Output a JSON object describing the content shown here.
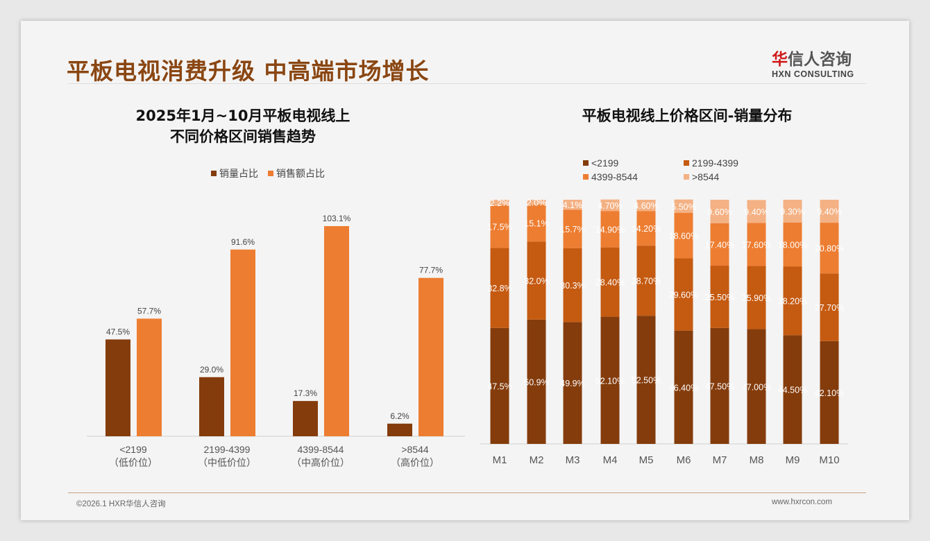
{
  "header": {
    "title": "平板电视消费升级 中高端市场增长",
    "logo_cn_first": "华",
    "logo_cn_rest": "信人咨询",
    "logo_en": "HXN CONSULTING"
  },
  "footer": {
    "copyright": "©2026.1 HXR华信人咨询",
    "url": "www.hxrcon.com"
  },
  "colors": {
    "c1": "#843c0c",
    "c2": "#c55a11",
    "c3": "#ed7d31",
    "c4": "#f4b183"
  },
  "chart_data": [
    {
      "type": "bar",
      "title_line1": "2025年1月~10月平板电视线上",
      "title_line2": "不同价格区间销售趋势",
      "categories": [
        "<2199",
        "2199-4399",
        "4399-8544",
        ">8544"
      ],
      "subcategories": [
        "（低价位）",
        "（中低价位）",
        "（中高价位）",
        "（高价位）"
      ],
      "series": [
        {
          "name": "销量占比",
          "values": [
            47.5,
            29.0,
            17.3,
            6.2
          ],
          "labels": [
            "47.5%",
            "29.0%",
            "17.3%",
            "6.2%"
          ]
        },
        {
          "name": "销售额占比",
          "values": [
            57.7,
            91.6,
            103.1,
            77.7
          ],
          "labels": [
            "57.7%",
            "91.6%",
            "103.1%",
            "77.7%"
          ]
        }
      ],
      "ylim": [
        0,
        110
      ],
      "legend": "top-center"
    },
    {
      "type": "bar",
      "stacked": true,
      "title": "平板电视线上价格区间-销量分布",
      "categories": [
        "M1",
        "M2",
        "M3",
        "M4",
        "M5",
        "M6",
        "M7",
        "M8",
        "M9",
        "M10"
      ],
      "series": [
        {
          "name": "<2199",
          "values": [
            47.5,
            50.9,
            49.9,
            52.1,
            52.5,
            46.4,
            47.5,
            47.0,
            44.5,
            42.1
          ],
          "labels": [
            "47.5%",
            "50.9%",
            "49.9%",
            "52.10%",
            "52.50%",
            "46.40%",
            "47.50%",
            "47.00%",
            "44.50%",
            "42.10%"
          ]
        },
        {
          "name": "2199-4399",
          "values": [
            32.8,
            32.0,
            30.3,
            28.4,
            28.7,
            29.6,
            25.5,
            25.9,
            28.2,
            27.7
          ],
          "labels": [
            "32.8%",
            "32.0%",
            "30.3%",
            "28.40%",
            "28.70%",
            "29.60%",
            "25.50%",
            "25.90%",
            "28.20%",
            "27.70%"
          ]
        },
        {
          "name": "4399-8544",
          "values": [
            17.5,
            15.1,
            15.7,
            14.9,
            14.2,
            18.6,
            17.4,
            17.6,
            18.0,
            20.8
          ],
          "labels": [
            "17.5%",
            "15.1%",
            "15.7%",
            "14.90%",
            "14.20%",
            "18.60%",
            "17.40%",
            "17.60%",
            "18.00%",
            "20.80%"
          ]
        },
        {
          "name": ">8544",
          "values": [
            2.2,
            2.0,
            4.1,
            4.7,
            4.6,
            5.5,
            9.6,
            9.4,
            9.3,
            9.4
          ],
          "labels": [
            "2.2%",
            "2.0%",
            "4.1%",
            "4.70%",
            "4.60%",
            "5.50%",
            "9.60%",
            "9.40%",
            "9.30%",
            "9.40%"
          ]
        }
      ],
      "ylim": [
        0,
        100
      ],
      "legend": "top"
    }
  ]
}
